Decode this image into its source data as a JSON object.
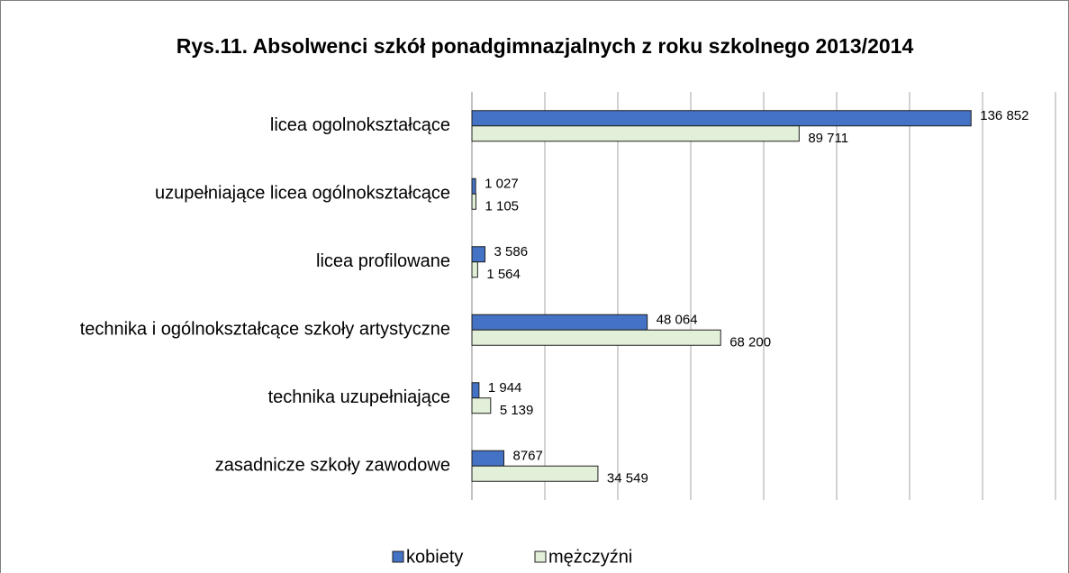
{
  "chart_data": {
    "type": "hbar",
    "title": "Rys.11. Absolwenci szkół ponadgimnazjalnych z roku szkolnego 2013/2014",
    "categories": [
      "licea ogolnokształcące",
      "uzupełniające licea ogólnokształcące",
      "licea profilowane",
      "technika i ogólnokształcące szkoły artystyczne",
      "technika uzupełniające",
      "zasadnicze szkoły zawodowe"
    ],
    "series": [
      {
        "name": "kobiety",
        "color": "#4472c4",
        "values": [
          136852,
          1027,
          3586,
          48064,
          1944,
          8767
        ],
        "value_labels": [
          "136 852",
          "1 027",
          "3 586",
          "48 064",
          "1 944",
          "8767"
        ]
      },
      {
        "name": "mężczyźni",
        "color": "#e2f0d9",
        "values": [
          89711,
          1105,
          1564,
          68200,
          5139,
          34549
        ],
        "value_labels": [
          "89 711",
          "1 105",
          "1 564",
          "68 200",
          "5 139",
          "34 549"
        ]
      }
    ],
    "xlim": [
      0,
      160000
    ],
    "xticks": [
      0,
      20000,
      40000,
      60000,
      80000,
      100000,
      120000,
      140000,
      160000
    ],
    "grid": true,
    "legend": "bottom"
  }
}
